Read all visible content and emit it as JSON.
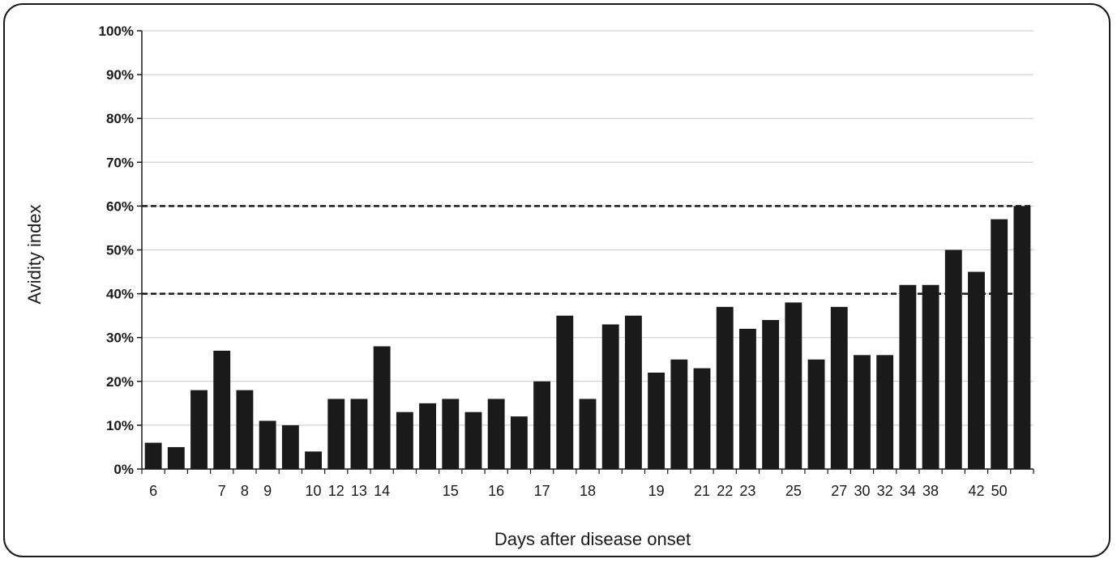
{
  "chart_data": {
    "type": "bar",
    "title": "",
    "xlabel": "Days after disease onset",
    "ylabel": "Avidity index",
    "ylim": [
      0,
      100
    ],
    "yticks": [
      "0%",
      "10%",
      "20%",
      "30%",
      "40%",
      "50%",
      "60%",
      "70%",
      "80%",
      "90%",
      "100%"
    ],
    "grid": true,
    "legend": "none",
    "bar_color": "#1a1a1a",
    "reference_lines": [
      40,
      60
    ],
    "bars": [
      {
        "day": "6",
        "value": 6
      },
      {
        "day": "6",
        "value": 5
      },
      {
        "day": "6",
        "value": 18
      },
      {
        "day": "7",
        "value": 27
      },
      {
        "day": "8",
        "value": 18
      },
      {
        "day": "9",
        "value": 11
      },
      {
        "day": "9",
        "value": 10
      },
      {
        "day": "10",
        "value": 4
      },
      {
        "day": "12",
        "value": 16
      },
      {
        "day": "13",
        "value": 16
      },
      {
        "day": "14",
        "value": 28
      },
      {
        "day": "14",
        "value": 13
      },
      {
        "day": "14",
        "value": 15
      },
      {
        "day": "15",
        "value": 16
      },
      {
        "day": "15",
        "value": 13
      },
      {
        "day": "16",
        "value": 16
      },
      {
        "day": "16",
        "value": 12
      },
      {
        "day": "17",
        "value": 20
      },
      {
        "day": "17",
        "value": 35
      },
      {
        "day": "18",
        "value": 16
      },
      {
        "day": "18",
        "value": 33
      },
      {
        "day": "18",
        "value": 35
      },
      {
        "day": "19",
        "value": 22
      },
      {
        "day": "19",
        "value": 25
      },
      {
        "day": "21",
        "value": 23
      },
      {
        "day": "22",
        "value": 37
      },
      {
        "day": "23",
        "value": 32
      },
      {
        "day": "23",
        "value": 34
      },
      {
        "day": "25",
        "value": 38
      },
      {
        "day": "25",
        "value": 25
      },
      {
        "day": "27",
        "value": 37
      },
      {
        "day": "30",
        "value": 26
      },
      {
        "day": "32",
        "value": 26
      },
      {
        "day": "34",
        "value": 42
      },
      {
        "day": "38",
        "value": 42
      },
      {
        "day": "38",
        "value": 50
      },
      {
        "day": "42",
        "value": 45
      },
      {
        "day": "50",
        "value": 57
      },
      {
        "day": "50",
        "value": 60
      }
    ],
    "x_tick_labels": [
      {
        "label": "6",
        "bar": 0
      },
      {
        "label": "7",
        "bar": 3
      },
      {
        "label": "8",
        "bar": 4
      },
      {
        "label": "9",
        "bar": 5
      },
      {
        "label": "10",
        "bar": 7
      },
      {
        "label": "12",
        "bar": 8
      },
      {
        "label": "13",
        "bar": 9
      },
      {
        "label": "14",
        "bar": 10
      },
      {
        "label": "15",
        "bar": 13
      },
      {
        "label": "16",
        "bar": 15
      },
      {
        "label": "17",
        "bar": 17
      },
      {
        "label": "18",
        "bar": 19
      },
      {
        "label": "19",
        "bar": 22
      },
      {
        "label": "21",
        "bar": 24
      },
      {
        "label": "22",
        "bar": 25
      },
      {
        "label": "23",
        "bar": 26
      },
      {
        "label": "25",
        "bar": 28
      },
      {
        "label": "27",
        "bar": 30
      },
      {
        "label": "30",
        "bar": 31
      },
      {
        "label": "32",
        "bar": 32
      },
      {
        "label": "34",
        "bar": 33
      },
      {
        "label": "38",
        "bar": 34
      },
      {
        "label": "42",
        "bar": 36
      },
      {
        "label": "50",
        "bar": 37
      }
    ]
  }
}
